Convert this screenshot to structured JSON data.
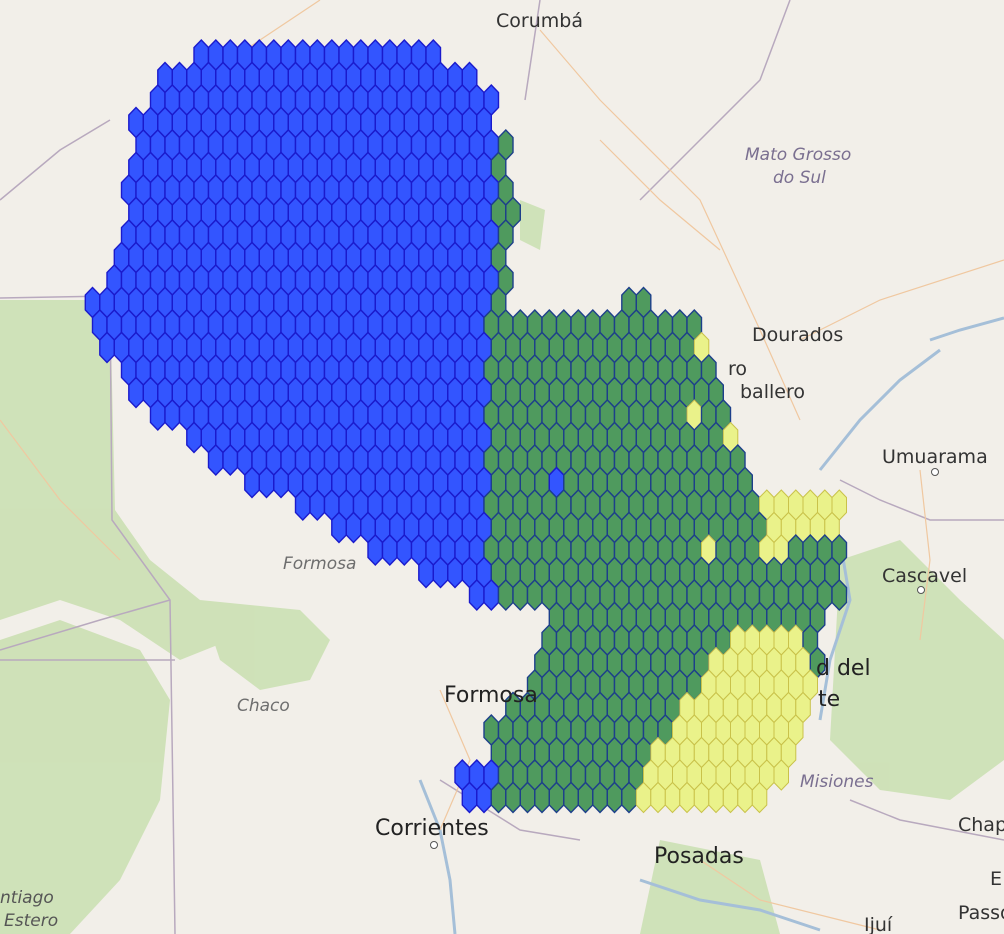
{
  "labels": {
    "corumba": "Corumbá",
    "mato_grosso": "Mato Grosso",
    "do_sul": "do Sul",
    "dourados": "Dourados",
    "ro": "ro",
    "ballero": "ballero",
    "umuarama": "Umuarama",
    "cascavel": "Cascavel",
    "formosa_region": "Formosa",
    "formosa_city": "Formosa",
    "chaco": "Chaco",
    "corrientes": "Corrientes",
    "posadas": "Posadas",
    "misiones": "Misiones",
    "d_del": "d del",
    "te": "te",
    "chap": "Chap",
    "e": "E",
    "passo": "Passo",
    "ijui": "Ijuí",
    "ntiago": "ntiago",
    "estero": "Estero"
  },
  "colors": {
    "blue": "#3355ff",
    "blue_stroke": "#1a1acc",
    "green": "#4f9a5e",
    "green_stroke": "#1d3f8a",
    "yellow": "#eaf28a",
    "yellow_stroke": "#c9c24a"
  },
  "legend_classes": [
    "blue",
    "green",
    "yellow"
  ]
}
